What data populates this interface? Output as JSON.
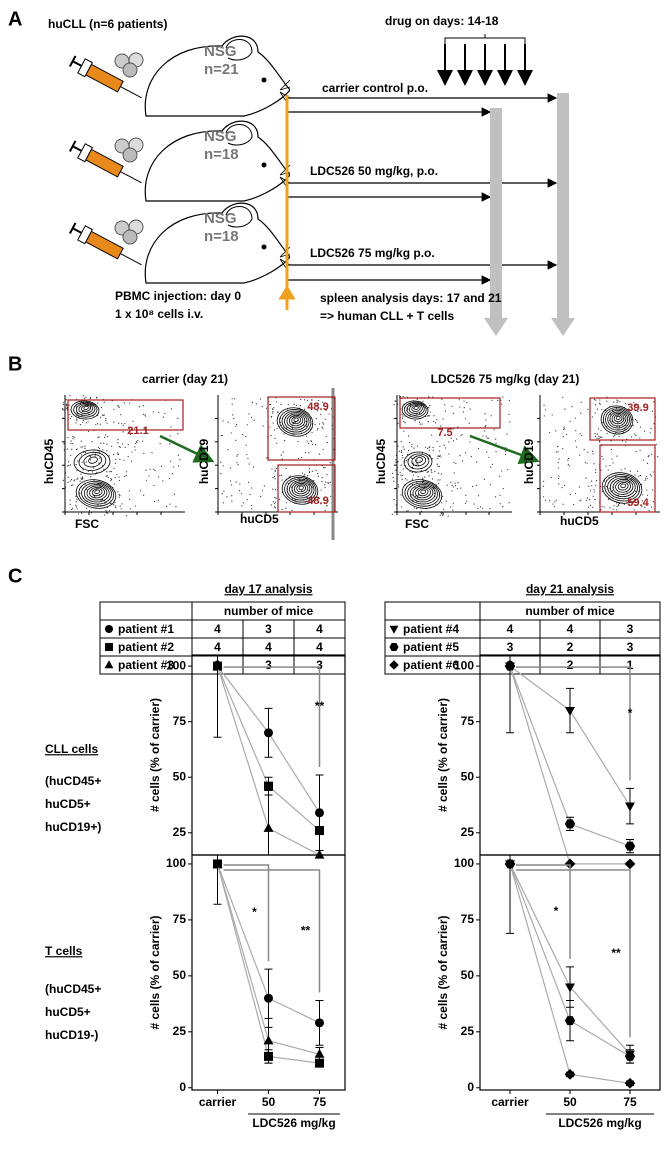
{
  "panel_a": {
    "label": "A",
    "title": "huCLL (n=6 patients)",
    "drug": "drug on days: 14-18",
    "groups": [
      {
        "strain": "NSG",
        "n": "n=21",
        "treatment": "carrier control p.o."
      },
      {
        "strain": "NSG",
        "n": "n=18",
        "treatment": "LDC526 50 mg/kg, p.o."
      },
      {
        "strain": "NSG",
        "n": "n=18",
        "treatment": "LDC526 75 mg/kg p.o."
      }
    ],
    "injection": [
      "PBMC injection: day 0",
      "1 x 10⁸ cells i.v."
    ],
    "analysis": [
      "spleen analysis days:  17  and  21",
      "=> human CLL + T cells"
    ]
  },
  "panel_b": {
    "label": "B",
    "titles": [
      "carrier  (day 21)",
      "LDC526 75 mg/kg (day 21)"
    ],
    "plots": [
      {
        "y_label": "huCD45",
        "x_label": "FSC",
        "gates": [
          21.1
        ]
      },
      {
        "y_label": "huCD19",
        "x_label": "huCD5",
        "gates": [
          48.9,
          48.9
        ]
      },
      {
        "y_label": "huCD45",
        "x_label": "FSC",
        "gates": [
          7.5
        ]
      },
      {
        "y_label": "huCD19",
        "x_label": "huCD5",
        "gates": [
          39.9,
          59.4
        ]
      }
    ]
  },
  "panel_c": {
    "label": "C",
    "tables": [
      {
        "title": "day 17 analysis",
        "header": "number of mice",
        "rows": [
          {
            "marker": "circle",
            "cells": [
              "patient #1",
              "4",
              "3",
              "4"
            ]
          },
          {
            "marker": "square",
            "cells": [
              "patient #2",
              "4",
              "4",
              "4"
            ]
          },
          {
            "marker": "triangle",
            "cells": [
              "patient #3",
              "3",
              "3",
              "3"
            ]
          }
        ]
      },
      {
        "title": "day 21 analysis",
        "header": "number of mice",
        "rows": [
          {
            "marker": "triangle-down",
            "cells": [
              "patient #4",
              "4",
              "4",
              "3"
            ]
          },
          {
            "marker": "hexagon",
            "cells": [
              "patient #5",
              "3",
              "2",
              "3"
            ]
          },
          {
            "marker": "diamond",
            "cells": [
              "patient #6",
              "3",
              "2",
              "1"
            ]
          }
        ]
      }
    ],
    "row_labels": [
      {
        "title": "CLL cells",
        "lines": [
          "(huCD45+",
          "huCD5+",
          "huCD19+)"
        ]
      },
      {
        "title": "T cells",
        "lines": [
          "(huCD45+",
          "huCD5+",
          "huCD19-)"
        ]
      }
    ]
  },
  "chart_data": [
    {
      "type": "line",
      "y_label": "# cells (% of carrier)",
      "categories": [
        null,
        null,
        null
      ],
      "ylim": [
        15,
        105
      ],
      "yticks": [
        25,
        50,
        75,
        100
      ],
      "line_color": "#aaaaaa",
      "marker_color": "#000000",
      "annotations": [
        "**"
      ],
      "series": [
        {
          "marker": "circle",
          "values": [
            100,
            70,
            34
          ],
          "errors": [
            null,
            11,
            17
          ]
        },
        {
          "marker": "square",
          "values": [
            100,
            46,
            26
          ],
          "errors": [
            32,
            4,
            1
          ]
        },
        {
          "marker": "triangle",
          "values": [
            100,
            27,
            15
          ],
          "errors": [
            null,
            17,
            2
          ]
        }
      ]
    },
    {
      "type": "line",
      "y_label": "# cells (% of carrier)",
      "categories": [
        "carrier",
        "50",
        "75"
      ],
      "x_label": "LDC526 mg/kg",
      "ylim": [
        -1,
        104
      ],
      "yticks": [
        0,
        25,
        50,
        75,
        100
      ],
      "line_color": "#aaaaaa",
      "marker_color": "#000000",
      "annotations": [
        "*",
        "**"
      ],
      "series": [
        {
          "marker": "circle",
          "values": [
            100,
            40,
            29
          ],
          "errors": [
            18,
            13,
            10
          ]
        },
        {
          "marker": "square",
          "values": [
            100,
            14,
            11
          ],
          "errors": [
            null,
            3,
            1
          ]
        },
        {
          "marker": "triangle",
          "values": [
            100,
            21,
            15
          ],
          "errors": [
            null,
            10,
            3
          ]
        }
      ]
    },
    {
      "type": "line",
      "y_label": "# cells (% of carrier)",
      "categories": [
        null,
        null,
        null
      ],
      "ylim": [
        15,
        105
      ],
      "yticks": [
        25,
        50,
        75,
        100
      ],
      "line_color": "#aaaaaa",
      "marker_color": "#000000",
      "annotations": [
        "*"
      ],
      "series": [
        {
          "marker": "triangle-down",
          "values": [
            100,
            80,
            37
          ],
          "errors": [
            30,
            10,
            8
          ]
        },
        {
          "marker": "hexagon",
          "values": [
            100,
            29,
            19
          ],
          "errors": [
            null,
            3,
            3
          ]
        },
        {
          "marker": "diamond",
          "values": [
            100,
            11,
            11
          ],
          "errors": [
            null,
            2,
            1
          ]
        }
      ]
    },
    {
      "type": "line",
      "y_label": "# cells (% of carrier)",
      "categories": [
        "carrier",
        "50",
        "75"
      ],
      "x_label": "LDC526 mg/kg",
      "ylim": [
        -1,
        104
      ],
      "yticks": [
        0,
        25,
        50,
        75,
        100
      ],
      "line_color": "#aaaaaa",
      "marker_color": "#000000",
      "annotations": [
        "*",
        "**"
      ],
      "series": [
        {
          "marker": "triangle-down",
          "values": [
            100,
            45,
            15
          ],
          "errors": [
            31,
            9,
            4
          ]
        },
        {
          "marker": "hexagon",
          "values": [
            100,
            30,
            14
          ],
          "errors": [
            null,
            9,
            3
          ]
        },
        {
          "marker": "diamond",
          "values": [
            100,
            6,
            2
          ],
          "errors": [
            null,
            1,
            1
          ]
        }
      ]
    }
  ]
}
